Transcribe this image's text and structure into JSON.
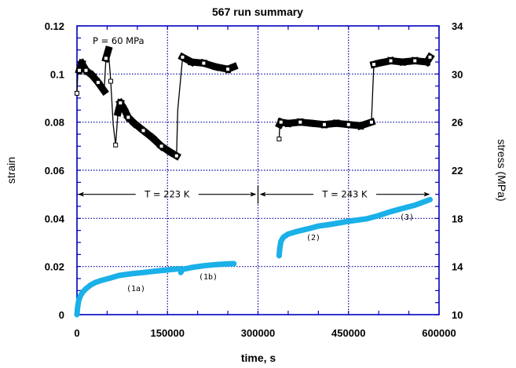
{
  "chart_data": {
    "type": "line",
    "title": "567 run summary",
    "xlabel": "time, s",
    "ylabel": "strain",
    "y2label": "stress (MPa)",
    "xlim": [
      0,
      600000
    ],
    "ylim": [
      0,
      0.12
    ],
    "y2lim": [
      10,
      34
    ],
    "xticks": [
      0,
      150000,
      300000,
      450000,
      600000
    ],
    "xtick_labels": [
      "0",
      "150000",
      "300000",
      "450000",
      "600000"
    ],
    "yticks": [
      0,
      0.02,
      0.04,
      0.06,
      0.08,
      0.1,
      0.12
    ],
    "ytick_labels": [
      "0",
      "0.02",
      "0.04",
      "0.06",
      "0.08",
      "0.1",
      "0.12"
    ],
    "y2ticks": [
      10,
      14,
      18,
      22,
      26,
      30,
      34
    ],
    "y2tick_labels": [
      "10",
      "14",
      "18",
      "22",
      "26",
      "30",
      "34"
    ],
    "grid": true,
    "colors": {
      "frame": "#0000c0",
      "grid": "#0000a0",
      "strain": "#1ab0e8",
      "stress": "#000000"
    },
    "series": [
      {
        "name": "stress",
        "axis": "right",
        "style": "thick-black-with-square-markers",
        "segments": [
          {
            "x": [
              0,
              2000,
              4000,
              8000,
              15000,
              25000,
              35000,
              45000,
              48000,
              52000,
              56000,
              60000,
              64000,
              68000,
              72000,
              78000,
              85000,
              95000,
              110000,
              125000,
              140000,
              155000,
              165000,
              167000,
              175000,
              190000,
              210000,
              230000,
              250000,
              260000
            ],
            "y": [
              28.4,
              30.8,
              30.3,
              30.9,
              30.3,
              29.9,
              29.3,
              28.6,
              31.3,
              32.0,
              29.4,
              25.8,
              24.1,
              26.8,
              27.6,
              27.1,
              26.4,
              25.9,
              25.3,
              24.7,
              24.0,
              23.5,
              23.2,
              27.0,
              31.4,
              31.0,
              30.9,
              30.6,
              30.4,
              30.6
            ]
          },
          {
            "x": [
              335000,
              336000,
              338000,
              350000,
              370000,
              390000,
              410000,
              430000,
              450000,
              470000,
              488000,
              490000,
              492000,
              500000,
              520000,
              540000,
              560000,
              580000,
              585000
            ],
            "y": [
              24.6,
              25.8,
              26.0,
              25.9,
              26.0,
              25.9,
              25.8,
              25.9,
              25.8,
              25.7,
              26.0,
              28.5,
              30.8,
              30.9,
              31.1,
              31.0,
              31.1,
              31.0,
              31.4
            ]
          }
        ]
      },
      {
        "name": "strain",
        "axis": "left",
        "style": "thick-cyan",
        "segments": [
          {
            "x": [
              0,
              1000,
              3000,
              6000,
              10000,
              15000,
              22000,
              30000,
              40000,
              55000,
              70000,
              90000,
              110000,
              130000,
              150000,
              170000
            ],
            "y": [
              0.0,
              0.003,
              0.006,
              0.008,
              0.0095,
              0.0108,
              0.0122,
              0.0133,
              0.0142,
              0.0152,
              0.0163,
              0.017,
              0.0175,
              0.0181,
              0.0186,
              0.0191
            ]
          },
          {
            "x": [
              172000,
              175000,
              190000,
              210000,
              230000,
              250000,
              260000
            ],
            "y": [
              0.0175,
              0.0188,
              0.0196,
              0.0203,
              0.0208,
              0.0211,
              0.0212
            ]
          },
          {
            "x": [
              335000,
              336000,
              338000,
              342000,
              350000,
              365000,
              385000,
              400000,
              420000,
              450000,
              480000,
              500000,
              520000,
              540000,
              560000,
              585000
            ],
            "y": [
              0.0245,
              0.0275,
              0.0305,
              0.0322,
              0.0335,
              0.0346,
              0.0358,
              0.0368,
              0.0375,
              0.0388,
              0.0398,
              0.0412,
              0.0428,
              0.0442,
              0.0455,
              0.0478
            ]
          }
        ]
      }
    ],
    "annotations": {
      "pressure": "P = 60 MPa",
      "temp1": "T = 223 K",
      "temp2": "T = 243 K",
      "label_1a": "(1a)",
      "label_1b": "(1b)",
      "label_2": "(2)",
      "label_3": "(3)",
      "temp1_range": [
        0,
        300000
      ],
      "temp2_range": [
        300000,
        585000
      ],
      "temp_arrow_strain": 0.05,
      "divider_time": 300000
    }
  }
}
